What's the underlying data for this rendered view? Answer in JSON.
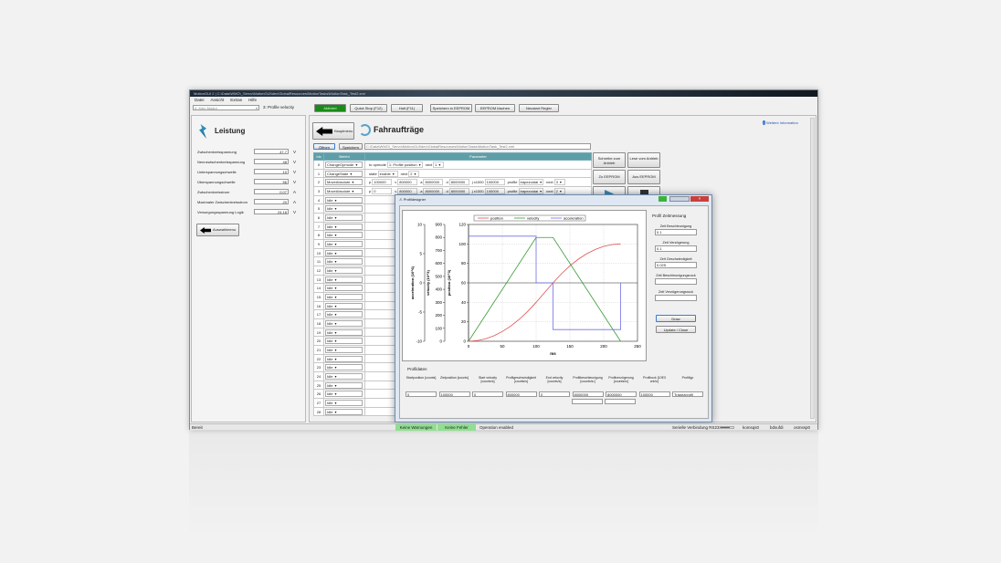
{
  "window": {
    "title": "MotionGUI 2 | C:\\Data\\WMO\\_Servo\\MotionGUI\\dev\\GlobalResources\\MotionTasks\\MotionTask_Test2.xml"
  },
  "menu": [
    "Datei",
    "Ansicht",
    "Extras",
    "Hilfe"
  ],
  "toolbar": {
    "module": "0: Kein Modul",
    "mode": "3: Profile velocity",
    "activated": "Aktiviert",
    "quick_stop": "Quick Stop (F12)",
    "halt": "Halt (F11)",
    "save_eeprom": "Speichern in EEPROM",
    "clear_eeprom": "EEPROM löschen",
    "restart": "Neustart Regler"
  },
  "left": {
    "title": "Leistung",
    "rows": [
      {
        "label": "Zwischenkreisspannung",
        "value": "47.7",
        "unit": "V"
      },
      {
        "label": "Nennzwischenkreisspannung",
        "value": "48",
        "unit": "V"
      },
      {
        "label": "Unterspannungschwelle",
        "value": "10",
        "unit": "V"
      },
      {
        "label": "Überspannungschwelle",
        "value": "56",
        "unit": "V"
      },
      {
        "label": "Zwischenkreisstrom",
        "value": "0.07",
        "unit": "A"
      },
      {
        "label": "Maximaler Zwischenkreisstrom",
        "value": "20",
        "unit": "A"
      },
      {
        "label": "Versorgungsspannung Logik",
        "value": "24.18",
        "unit": "V"
      }
    ],
    "back": "Auswahlmenu"
  },
  "main": {
    "back": "Hauptmenu",
    "title": "Fahraufträge",
    "open": "Öffnen",
    "save": "Speichern",
    "path": "C:\\Data\\WMO\\_Servo\\MotionGUI\\dev\\GlobalResources\\MotionTasks\\MotionTask_Test2.xml",
    "info": "Weitere Information",
    "write": "Schreibe zum Antrieb",
    "read": "Lese vom Antrieb",
    "to_eeprom": "Zu EEPROM",
    "from_eeprom": "Aus EEPROM"
  },
  "table": {
    "headers": [
      "Idx",
      "Befehl",
      "Parameter"
    ],
    "rows": [
      {
        "idx": "0",
        "cmd": "ChangeOpmode",
        "params": [
          [
            "to opmode",
            "1: Profile position"
          ],
          [
            "next",
            "1"
          ]
        ]
      },
      {
        "idx": "1",
        "cmd": "ChangeState",
        "params": [
          [
            "state",
            "enable"
          ],
          [
            "next",
            "2"
          ]
        ]
      },
      {
        "idx": "2",
        "cmd": "MoveAbsolute",
        "params": [
          [
            "p",
            "100000"
          ],
          [
            "v",
            "800000"
          ],
          [
            "a",
            "8000000"
          ],
          [
            "d",
            "8000000"
          ],
          [
            "j x1000",
            "100000"
          ],
          [
            "profile",
            "trapezoidal"
          ],
          [
            "next",
            "3"
          ]
        ]
      },
      {
        "idx": "3",
        "cmd": "MoveAbsolute",
        "params": [
          [
            "p",
            "0"
          ],
          [
            "v",
            "800000"
          ],
          [
            "a",
            "8000000"
          ],
          [
            "d",
            "8000000"
          ],
          [
            "j x1000",
            "100000"
          ],
          [
            "profile",
            "trapezoidal"
          ],
          [
            "next",
            "2"
          ]
        ]
      }
    ],
    "idle_label": "Idle",
    "last_idx": 28
  },
  "dialog": {
    "title": "Profildesigner",
    "right_title": "Profil Zeitmessung",
    "fields": [
      {
        "label": "Zeit Beschleunigung",
        "value": "0.1"
      },
      {
        "label": "Zeit Verzögerung",
        "value": "0.1"
      },
      {
        "label": "Zeit Geschwindigkeit",
        "value": "0.025"
      },
      {
        "label": "Zeit Beschleunigungsruck",
        "value": ""
      },
      {
        "label": "Zeit Verzögerungsruck",
        "value": ""
      }
    ],
    "draw": "Draw",
    "update": "Update / Close",
    "profile_title": "Profildaten",
    "profile_cols": [
      {
        "label": "Startposition [counts]",
        "value": "0"
      },
      {
        "label": "Zielposition [counts]",
        "value": "100000"
      },
      {
        "label": "Start velocity [counts/s]",
        "value": "0"
      },
      {
        "label": "Profilgeschwindigkeit [counts/s]",
        "value": "800000"
      },
      {
        "label": "End velocity [counts/s]",
        "value": "0"
      },
      {
        "label": "Profilbeschleunigung [counts/s²]",
        "value": "8000000"
      },
      {
        "label": "Profilverzögerung [counts/s²]",
        "value": "8000000"
      },
      {
        "label": "Profilruck [10E3 cnt/s³]",
        "value": "100000"
      },
      {
        "label": "Profiltyp",
        "value": "Trapezprofil"
      }
    ]
  },
  "chart_data": {
    "type": "line",
    "xlabel": "ms",
    "xlim": [
      0,
      250
    ],
    "xticks": [
      0,
      50,
      100,
      150,
      200,
      250
    ],
    "axes": [
      {
        "label": "acceleration (10^6)",
        "lim": [
          -10,
          10
        ],
        "ticks": [
          -10,
          -5,
          0,
          5,
          10
        ]
      },
      {
        "label": "velocity (10^3)",
        "lim": [
          0,
          900
        ],
        "ticks": [
          0,
          100,
          200,
          300,
          400,
          500,
          600,
          700,
          800,
          900
        ]
      },
      {
        "label": "position (10^3)",
        "lim": [
          0,
          120
        ],
        "ticks": [
          0,
          20,
          40,
          60,
          80,
          100,
          120
        ]
      }
    ],
    "grid": true,
    "legend": "top",
    "series": [
      {
        "name": "position",
        "axis": 2,
        "color": "#e05050",
        "x": [
          0,
          12.5,
          25,
          37.5,
          50,
          62.5,
          75,
          87.5,
          100,
          125,
          137.5,
          150,
          162.5,
          175,
          187.5,
          200,
          212.5,
          225
        ],
        "y": [
          0,
          0.625,
          2.5,
          5.625,
          10,
          15.625,
          22.5,
          30.625,
          40,
          60,
          69.375,
          77.5,
          84.375,
          90,
          94.375,
          97.5,
          99.375,
          100
        ]
      },
      {
        "name": "velocity",
        "axis": 1,
        "color": "#3a9a3a",
        "x": [
          0,
          100,
          125,
          225
        ],
        "y": [
          0,
          800,
          800,
          0
        ]
      },
      {
        "name": "acceleration",
        "axis": 0,
        "color": "#7070e8",
        "x": [
          0,
          100,
          100,
          125,
          125,
          225,
          225
        ],
        "y": [
          8,
          8,
          0,
          0,
          -8,
          -8,
          0
        ]
      }
    ]
  },
  "status": {
    "ready": "Bereit",
    "warnings": "Keine Warnungen",
    "errors": "Keine Fehler",
    "operation": "Operation enabled",
    "serial": "Serielle Verbindung RS232",
    "s1": "komsqs0",
    "s2": "bdsufdi",
    "s3": "osmssp0"
  }
}
